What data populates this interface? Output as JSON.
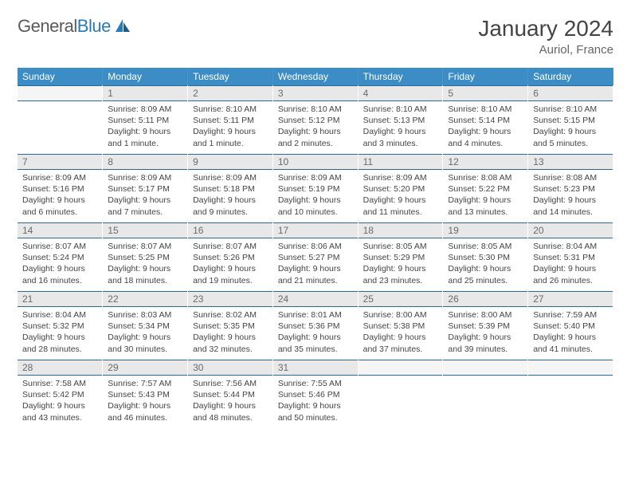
{
  "logo": {
    "text_gray": "General",
    "text_blue": "Blue"
  },
  "title": "January 2024",
  "location": "Auriol, France",
  "weekdays": [
    "Sunday",
    "Monday",
    "Tuesday",
    "Wednesday",
    "Thursday",
    "Friday",
    "Saturday"
  ],
  "colors": {
    "header_bg": "#3c8dc5",
    "header_text": "#ffffff",
    "daynum_bg": "#e8e8e8",
    "daynum_border": "#2a6a9a",
    "body_text": "#444444"
  },
  "start_offset": 1,
  "days": [
    {
      "n": 1,
      "sr": "8:09 AM",
      "ss": "5:11 PM",
      "dl": "9 hours and 1 minute."
    },
    {
      "n": 2,
      "sr": "8:10 AM",
      "ss": "5:11 PM",
      "dl": "9 hours and 1 minute."
    },
    {
      "n": 3,
      "sr": "8:10 AM",
      "ss": "5:12 PM",
      "dl": "9 hours and 2 minutes."
    },
    {
      "n": 4,
      "sr": "8:10 AM",
      "ss": "5:13 PM",
      "dl": "9 hours and 3 minutes."
    },
    {
      "n": 5,
      "sr": "8:10 AM",
      "ss": "5:14 PM",
      "dl": "9 hours and 4 minutes."
    },
    {
      "n": 6,
      "sr": "8:10 AM",
      "ss": "5:15 PM",
      "dl": "9 hours and 5 minutes."
    },
    {
      "n": 7,
      "sr": "8:09 AM",
      "ss": "5:16 PM",
      "dl": "9 hours and 6 minutes."
    },
    {
      "n": 8,
      "sr": "8:09 AM",
      "ss": "5:17 PM",
      "dl": "9 hours and 7 minutes."
    },
    {
      "n": 9,
      "sr": "8:09 AM",
      "ss": "5:18 PM",
      "dl": "9 hours and 9 minutes."
    },
    {
      "n": 10,
      "sr": "8:09 AM",
      "ss": "5:19 PM",
      "dl": "9 hours and 10 minutes."
    },
    {
      "n": 11,
      "sr": "8:09 AM",
      "ss": "5:20 PM",
      "dl": "9 hours and 11 minutes."
    },
    {
      "n": 12,
      "sr": "8:08 AM",
      "ss": "5:22 PM",
      "dl": "9 hours and 13 minutes."
    },
    {
      "n": 13,
      "sr": "8:08 AM",
      "ss": "5:23 PM",
      "dl": "9 hours and 14 minutes."
    },
    {
      "n": 14,
      "sr": "8:07 AM",
      "ss": "5:24 PM",
      "dl": "9 hours and 16 minutes."
    },
    {
      "n": 15,
      "sr": "8:07 AM",
      "ss": "5:25 PM",
      "dl": "9 hours and 18 minutes."
    },
    {
      "n": 16,
      "sr": "8:07 AM",
      "ss": "5:26 PM",
      "dl": "9 hours and 19 minutes."
    },
    {
      "n": 17,
      "sr": "8:06 AM",
      "ss": "5:27 PM",
      "dl": "9 hours and 21 minutes."
    },
    {
      "n": 18,
      "sr": "8:05 AM",
      "ss": "5:29 PM",
      "dl": "9 hours and 23 minutes."
    },
    {
      "n": 19,
      "sr": "8:05 AM",
      "ss": "5:30 PM",
      "dl": "9 hours and 25 minutes."
    },
    {
      "n": 20,
      "sr": "8:04 AM",
      "ss": "5:31 PM",
      "dl": "9 hours and 26 minutes."
    },
    {
      "n": 21,
      "sr": "8:04 AM",
      "ss": "5:32 PM",
      "dl": "9 hours and 28 minutes."
    },
    {
      "n": 22,
      "sr": "8:03 AM",
      "ss": "5:34 PM",
      "dl": "9 hours and 30 minutes."
    },
    {
      "n": 23,
      "sr": "8:02 AM",
      "ss": "5:35 PM",
      "dl": "9 hours and 32 minutes."
    },
    {
      "n": 24,
      "sr": "8:01 AM",
      "ss": "5:36 PM",
      "dl": "9 hours and 35 minutes."
    },
    {
      "n": 25,
      "sr": "8:00 AM",
      "ss": "5:38 PM",
      "dl": "9 hours and 37 minutes."
    },
    {
      "n": 26,
      "sr": "8:00 AM",
      "ss": "5:39 PM",
      "dl": "9 hours and 39 minutes."
    },
    {
      "n": 27,
      "sr": "7:59 AM",
      "ss": "5:40 PM",
      "dl": "9 hours and 41 minutes."
    },
    {
      "n": 28,
      "sr": "7:58 AM",
      "ss": "5:42 PM",
      "dl": "9 hours and 43 minutes."
    },
    {
      "n": 29,
      "sr": "7:57 AM",
      "ss": "5:43 PM",
      "dl": "9 hours and 46 minutes."
    },
    {
      "n": 30,
      "sr": "7:56 AM",
      "ss": "5:44 PM",
      "dl": "9 hours and 48 minutes."
    },
    {
      "n": 31,
      "sr": "7:55 AM",
      "ss": "5:46 PM",
      "dl": "9 hours and 50 minutes."
    }
  ],
  "labels": {
    "sunrise": "Sunrise:",
    "sunset": "Sunset:",
    "daylight": "Daylight:"
  }
}
